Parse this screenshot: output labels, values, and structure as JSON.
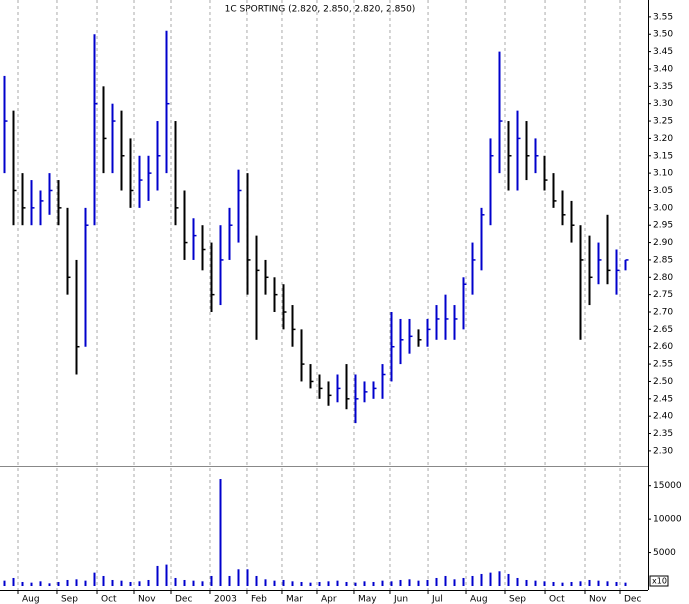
{
  "chart_data": [
    {
      "type": "ohlc",
      "title": "1C SPORTING (2.820, 2.850, 2.820, 2.850)",
      "up_color": "#0000cc",
      "down_color": "#000000",
      "x": [
        0,
        1,
        2,
        3,
        4,
        5,
        6,
        7,
        8,
        9,
        10,
        11,
        12,
        13,
        14,
        15,
        16,
        17,
        18,
        19,
        20,
        21,
        22,
        23,
        24,
        25,
        26,
        27,
        28,
        29,
        30,
        31,
        32,
        33,
        34,
        35,
        36,
        37,
        38,
        39,
        40,
        41,
        42,
        43,
        44,
        45,
        46,
        47,
        48,
        49,
        50,
        51,
        52,
        53,
        54,
        55,
        56,
        57,
        58,
        59,
        60,
        61,
        62,
        63,
        64,
        65,
        66,
        67,
        68,
        69
      ],
      "high": [
        3.38,
        3.28,
        3.1,
        3.08,
        3.05,
        3.1,
        3.08,
        3.0,
        2.85,
        3.0,
        3.5,
        3.35,
        3.3,
        3.28,
        3.2,
        3.15,
        3.15,
        3.25,
        3.51,
        3.25,
        3.05,
        2.97,
        2.95,
        2.9,
        2.95,
        3.0,
        3.11,
        3.1,
        2.92,
        2.85,
        2.8,
        2.78,
        2.72,
        2.65,
        2.55,
        2.52,
        2.5,
        2.52,
        2.55,
        2.52,
        2.5,
        2.5,
        2.55,
        2.7,
        2.68,
        2.68,
        2.65,
        2.68,
        2.72,
        2.75,
        2.72,
        2.8,
        2.9,
        3.0,
        3.2,
        3.45,
        3.25,
        3.28,
        3.25,
        3.2,
        3.15,
        3.1,
        3.05,
        3.02,
        2.95,
        2.92,
        2.9,
        2.98,
        2.88,
        2.85
      ],
      "low": [
        3.1,
        2.95,
        2.95,
        2.95,
        2.95,
        2.98,
        2.95,
        2.75,
        2.52,
        2.6,
        2.95,
        3.1,
        3.1,
        3.05,
        3.0,
        3.0,
        3.02,
        3.05,
        3.1,
        2.95,
        2.85,
        2.85,
        2.82,
        2.7,
        2.72,
        2.85,
        2.9,
        2.75,
        2.62,
        2.75,
        2.7,
        2.65,
        2.6,
        2.5,
        2.48,
        2.45,
        2.43,
        2.44,
        2.42,
        2.38,
        2.44,
        2.45,
        2.45,
        2.5,
        2.55,
        2.58,
        2.6,
        2.6,
        2.62,
        2.62,
        2.62,
        2.65,
        2.75,
        2.82,
        2.95,
        3.1,
        3.05,
        3.05,
        3.08,
        3.1,
        3.05,
        3.0,
        2.95,
        2.9,
        2.62,
        2.72,
        2.78,
        2.78,
        2.75,
        2.82
      ],
      "close": [
        3.25,
        3.05,
        3.0,
        3.0,
        3.02,
        3.05,
        3.0,
        2.8,
        2.6,
        2.95,
        3.3,
        3.2,
        3.25,
        3.15,
        3.05,
        3.08,
        3.1,
        3.15,
        3.3,
        3.0,
        2.9,
        2.92,
        2.88,
        2.75,
        2.85,
        2.95,
        3.05,
        2.85,
        2.82,
        2.8,
        2.75,
        2.7,
        2.65,
        2.55,
        2.5,
        2.48,
        2.46,
        2.48,
        2.45,
        2.45,
        2.47,
        2.48,
        2.52,
        2.6,
        2.62,
        2.63,
        2.62,
        2.65,
        2.68,
        2.68,
        2.68,
        2.78,
        2.85,
        2.98,
        3.15,
        3.25,
        3.15,
        3.2,
        3.15,
        3.15,
        3.08,
        3.02,
        2.98,
        2.95,
        2.85,
        2.8,
        2.85,
        2.82,
        2.82,
        2.85
      ],
      "xlim": [
        -0.5,
        71.5
      ],
      "ylim": [
        2.268,
        3.59
      ],
      "yticks": [
        {
          "value": 2.3,
          "label": "2.30"
        },
        {
          "value": 2.35,
          "label": "2.35"
        },
        {
          "value": 2.4,
          "label": "2.40"
        },
        {
          "value": 2.45,
          "label": "2.45"
        },
        {
          "value": 2.5,
          "label": "2.50"
        },
        {
          "value": 2.55,
          "label": "2.55"
        },
        {
          "value": 2.6,
          "label": "2.60"
        },
        {
          "value": 2.65,
          "label": "2.65"
        },
        {
          "value": 2.7,
          "label": "2.70"
        },
        {
          "value": 2.75,
          "label": "2.75"
        },
        {
          "value": 2.8,
          "label": "2.80"
        },
        {
          "value": 2.85,
          "label": "2.85"
        },
        {
          "value": 2.9,
          "label": "2.90"
        },
        {
          "value": 2.95,
          "label": "2.95"
        },
        {
          "value": 3.0,
          "label": "3.00"
        },
        {
          "value": 3.05,
          "label": "3.05"
        },
        {
          "value": 3.1,
          "label": "3.10"
        },
        {
          "value": 3.15,
          "label": "3.15"
        },
        {
          "value": 3.2,
          "label": "3.20"
        },
        {
          "value": 3.25,
          "label": "3.25"
        },
        {
          "value": 3.3,
          "label": "3.30"
        },
        {
          "value": 3.35,
          "label": "3.35"
        },
        {
          "value": 3.4,
          "label": "3.40"
        },
        {
          "value": 3.45,
          "label": "3.45"
        },
        {
          "value": 3.5,
          "label": "3.50"
        },
        {
          "value": 3.55,
          "label": "3.55"
        }
      ]
    },
    {
      "type": "bar",
      "color": "#0000cc",
      "axis_note": "x10",
      "x": [
        0,
        1,
        2,
        3,
        4,
        5,
        6,
        7,
        8,
        9,
        10,
        11,
        12,
        13,
        14,
        15,
        16,
        17,
        18,
        19,
        20,
        21,
        22,
        23,
        24,
        25,
        26,
        27,
        28,
        29,
        30,
        31,
        32,
        33,
        34,
        35,
        36,
        37,
        38,
        39,
        40,
        41,
        42,
        43,
        44,
        45,
        46,
        47,
        48,
        49,
        50,
        51,
        52,
        53,
        54,
        55,
        56,
        57,
        58,
        59,
        60,
        61,
        62,
        63,
        64,
        65,
        66,
        67,
        68,
        69
      ],
      "values": [
        800,
        1200,
        600,
        500,
        700,
        400,
        600,
        900,
        1000,
        800,
        2000,
        1500,
        900,
        800,
        600,
        700,
        900,
        3000,
        3200,
        1200,
        900,
        800,
        700,
        1500,
        16000,
        1500,
        2500,
        2500,
        1500,
        1000,
        800,
        900,
        700,
        600,
        500,
        600,
        700,
        800,
        600,
        500,
        700,
        600,
        800,
        700,
        900,
        1000,
        800,
        900,
        1200,
        1500,
        1000,
        1200,
        1500,
        1800,
        2000,
        2200,
        1800,
        1200,
        900,
        800,
        700,
        600,
        500,
        600,
        700,
        900,
        800,
        700,
        600,
        500
      ],
      "xlim": [
        -0.5,
        71.5
      ],
      "ylim": [
        0,
        17500
      ],
      "yticks": [
        5000,
        10000,
        15000
      ],
      "xticks": [
        {
          "value": 1.5,
          "label": "Aug"
        },
        {
          "value": 5.83,
          "label": "Sep"
        },
        {
          "value": 10.28,
          "label": "Oct"
        },
        {
          "value": 14.39,
          "label": "Nov"
        },
        {
          "value": 18.5,
          "label": "Dec"
        },
        {
          "value": 22.83,
          "label": "2003"
        },
        {
          "value": 26.94,
          "label": "Feb"
        },
        {
          "value": 30.83,
          "label": "Mar"
        },
        {
          "value": 34.72,
          "label": "Apr"
        },
        {
          "value": 38.83,
          "label": "May"
        },
        {
          "value": 42.83,
          "label": "Jun"
        },
        {
          "value": 47.06,
          "label": "Jul"
        },
        {
          "value": 51.28,
          "label": "Aug"
        },
        {
          "value": 55.61,
          "label": "Sep"
        },
        {
          "value": 60.06,
          "label": "Oct"
        },
        {
          "value": 64.5,
          "label": "Nov"
        },
        {
          "value": 68.39,
          "label": "Dec"
        }
      ]
    }
  ]
}
